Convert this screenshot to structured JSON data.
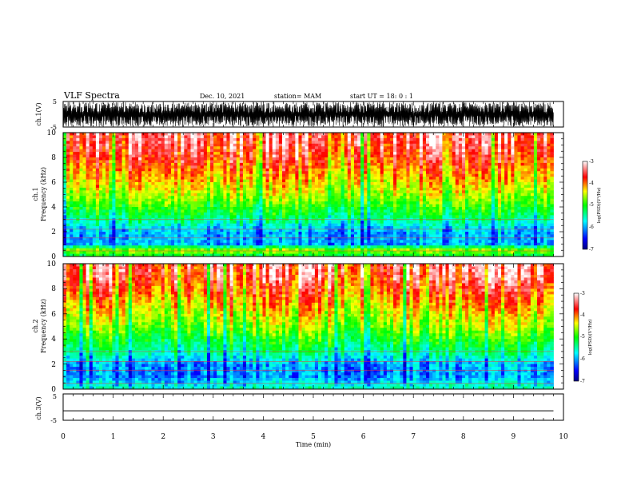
{
  "header": {
    "title": "VLF Spectra",
    "date": "Dec. 10, 2021",
    "station": "station= MAM",
    "start": "start  UT =   18: 0  : 1"
  },
  "chart_data": [
    {
      "type": "line",
      "panel": "ch1-waveform",
      "ylabel": "ch.1(V)",
      "ylim": [
        -5,
        5
      ],
      "yticks": [
        "5",
        "-5"
      ],
      "xlim": [
        0,
        10
      ],
      "description_values": "dense oscillating waveform, amplitude up to about ±5 V from t=0 to 9.8 min",
      "color": "#000000"
    },
    {
      "type": "heatmap",
      "panel": "ch1-spectrogram",
      "ylabel": "ch.1\nFrequency (kHz)",
      "ylim": [
        0,
        10
      ],
      "yticks": [
        "0",
        "2",
        "4",
        "6",
        "8",
        "10"
      ],
      "xlim": [
        0,
        10
      ],
      "data_xrange": [
        0,
        9.8
      ],
      "colorbar": {
        "label": "log(PSD)(V²/Hz)",
        "range": [
          -7,
          -3
        ],
        "ticks": [
          "-3",
          "-4",
          "-5",
          "-6",
          "-7"
        ],
        "colors": [
          "#000080",
          "#0000ff",
          "#00ffff",
          "#00ff00",
          "#ffff00",
          "#ff0000",
          "#ffffff"
        ]
      },
      "profile_log_psd": [
        [
          0,
          -5.2
        ],
        [
          0.5,
          -4.5
        ],
        [
          1,
          -6.0
        ],
        [
          2,
          -6.0
        ],
        [
          3,
          -5.4
        ],
        [
          4,
          -4.9
        ],
        [
          5,
          -4.5
        ],
        [
          6,
          -4.2
        ],
        [
          7,
          -3.9
        ],
        [
          8,
          -3.6
        ],
        [
          9,
          -3.4
        ],
        [
          10,
          -3.3
        ]
      ]
    },
    {
      "type": "heatmap",
      "panel": "ch2-spectrogram",
      "ylabel": "ch.2\nFrequency (kHz)",
      "ylim": [
        0,
        10
      ],
      "yticks": [
        "0",
        "2",
        "4",
        "6",
        "8",
        "10"
      ],
      "xlim": [
        0,
        10
      ],
      "data_xrange": [
        0,
        9.8
      ],
      "colorbar": {
        "label": "log(PSD)(V²/Hz)",
        "range": [
          -7,
          -3
        ],
        "ticks": [
          "-3",
          "-4",
          "-5",
          "-6",
          "-7"
        ],
        "colors": [
          "#000080",
          "#0000ff",
          "#00ffff",
          "#00ff00",
          "#ffff00",
          "#ff0000",
          "#ffffff"
        ]
      },
      "profile_log_psd": [
        [
          0,
          -5.5
        ],
        [
          0.5,
          -5.8
        ],
        [
          1,
          -6.1
        ],
        [
          2,
          -6.0
        ],
        [
          3,
          -5.4
        ],
        [
          4,
          -5.0
        ],
        [
          5,
          -4.6
        ],
        [
          6,
          -4.3
        ],
        [
          7,
          -4.0
        ],
        [
          8,
          -3.7
        ],
        [
          9,
          -3.4
        ],
        [
          10,
          -3.3
        ]
      ]
    },
    {
      "type": "line",
      "panel": "ch3-waveform",
      "ylabel": "ch.3(V)",
      "ylim": [
        -5,
        5
      ],
      "yticks": [
        "5",
        "-5"
      ],
      "xlim": [
        0,
        10
      ],
      "x": [
        0,
        9.8
      ],
      "y": [
        -1.4,
        -1.4
      ],
      "color": "#000000"
    }
  ],
  "xaxis": {
    "label": "Time  (min)",
    "ticks": [
      "0",
      "1",
      "2",
      "3",
      "4",
      "5",
      "6",
      "7",
      "8",
      "9",
      "10"
    ]
  }
}
